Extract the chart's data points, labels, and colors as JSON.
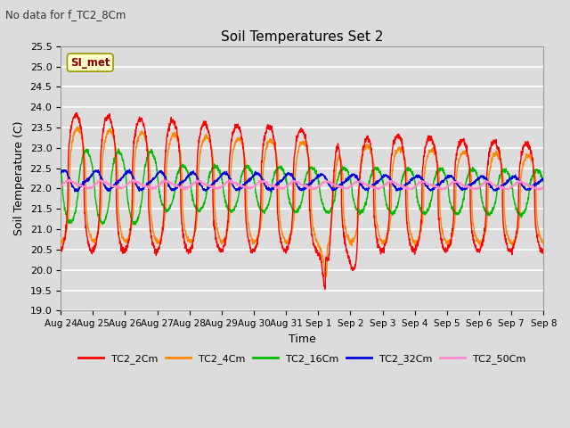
{
  "title": "Soil Temperatures Set 2",
  "subtitle": "No data for f_TC2_8Cm",
  "xlabel": "Time",
  "ylabel": "Soil Temperature (C)",
  "ylim": [
    19.0,
    25.5
  ],
  "yticks": [
    19.0,
    19.5,
    20.0,
    20.5,
    21.0,
    21.5,
    22.0,
    22.5,
    23.0,
    23.5,
    24.0,
    24.5,
    25.0,
    25.5
  ],
  "background_color": "#dcdcdc",
  "plot_bg_color": "#dcdcdc",
  "grid_color": "#ffffff",
  "annotation_text": "SI_met",
  "annotation_box_color": "#ffffcc",
  "annotation_box_edge": "#999900",
  "colors": {
    "TC2_2Cm": "#ff0000",
    "TC2_4Cm": "#ff8800",
    "TC2_16Cm": "#00bb00",
    "TC2_32Cm": "#0000dd",
    "TC2_50Cm": "#ff88cc"
  },
  "legend_labels": [
    "TC2_2Cm",
    "TC2_4Cm",
    "TC2_16Cm",
    "TC2_32Cm",
    "TC2_50Cm"
  ],
  "xtick_labels": [
    "Aug 24",
    "Aug 25",
    "Aug 26",
    "Aug 27",
    "Aug 28",
    "Aug 29",
    "Aug 30",
    "Aug 31",
    "Sep 1",
    "Sep 2",
    "Sep 3",
    "Sep 4",
    "Sep 5",
    "Sep 6",
    "Sep 7",
    "Sep 8"
  ],
  "n_days": 15,
  "points_per_day": 144
}
